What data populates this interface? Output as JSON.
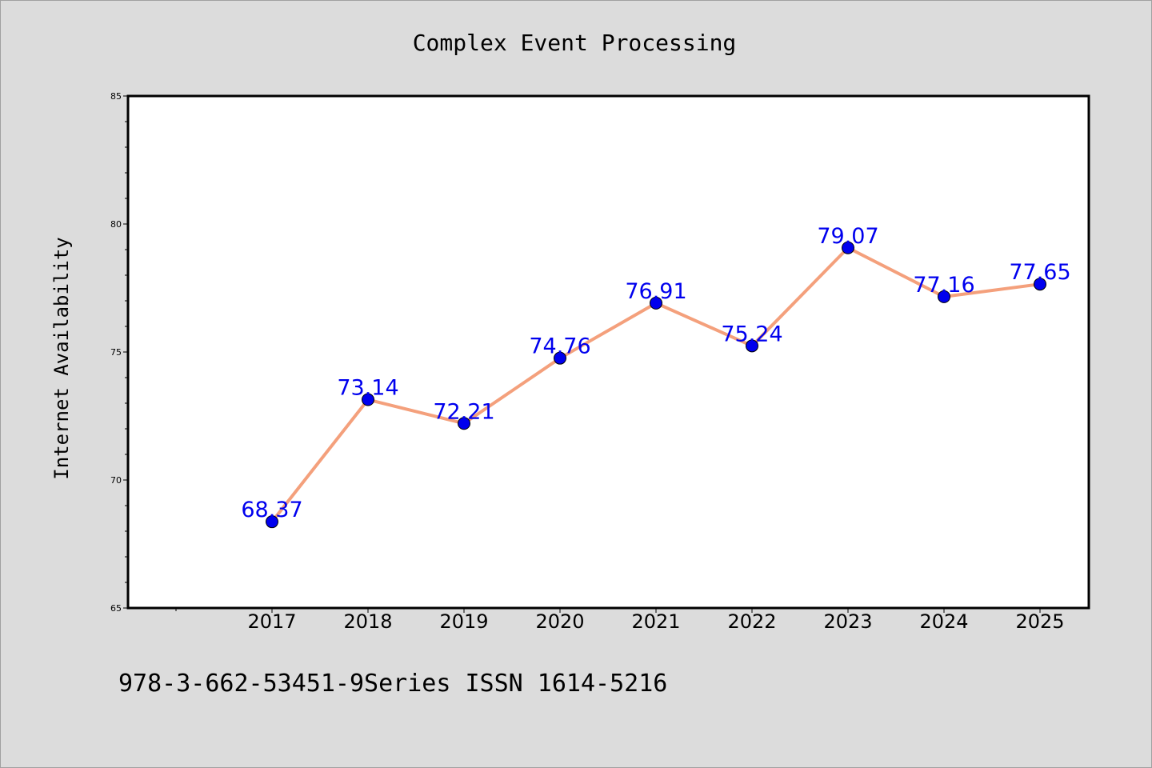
{
  "chart_data": {
    "type": "line",
    "title": "Complex Event Processing",
    "xlabel": "",
    "ylabel": "Internet Availability",
    "x": [
      "2017",
      "2018",
      "2019",
      "2020",
      "2021",
      "2022",
      "2023",
      "2024",
      "2025"
    ],
    "series": [
      {
        "values": [
          68.37,
          73.14,
          72.21,
          74.76,
          76.91,
          75.24,
          79.07,
          77.16,
          77.65
        ],
        "labels": [
          "68.37",
          "73.14",
          "72.21",
          "74.76",
          "76.91",
          "75.24",
          "79.07",
          "77.16",
          "77.65"
        ],
        "color": "#0000ee",
        "line_color": "#f4a07c"
      }
    ],
    "ylim": [
      65,
      85
    ],
    "yticks": [
      "65",
      "70",
      "75",
      "80",
      "85"
    ],
    "grid": false,
    "legend": "none"
  },
  "footer": {
    "text": "978-3-662-53451-9Series ISSN 1614-5216"
  },
  "colors": {
    "background": "#dcdcdc",
    "plot_background": "#ffffff"
  }
}
